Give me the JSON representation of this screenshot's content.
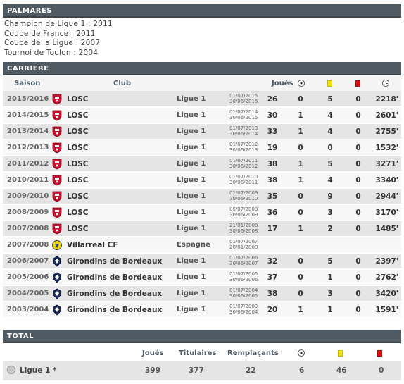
{
  "palmares": {
    "title": "PALMARES",
    "items": [
      "Champion de Ligue 1 : 2011",
      "Coupe de France : 2011",
      "Coupe de la Ligue : 2007",
      "Tournoi de Toulon : 2004"
    ]
  },
  "carriere": {
    "title": "CARRIERE",
    "headers": {
      "season": "Saison",
      "club": "Club",
      "played": "Joués"
    },
    "icons": {
      "goals": "ball-icon",
      "yellow": "yellow-card-icon",
      "red": "red-card-icon",
      "time": "clock-icon"
    },
    "rows": [
      {
        "season": "2015/2016",
        "club": "LOSC",
        "crest": "losc",
        "league": "Ligue 1",
        "from": "01/07/2015",
        "to": "30/06/2016",
        "played": "26",
        "goals": "0",
        "yellow": "5",
        "red": "0",
        "time": "2218'"
      },
      {
        "season": "2014/2015",
        "club": "LOSC",
        "crest": "losc",
        "league": "Ligue 1",
        "from": "01/07/2014",
        "to": "30/06/2015",
        "played": "30",
        "goals": "1",
        "yellow": "4",
        "red": "0",
        "time": "2601'"
      },
      {
        "season": "2013/2014",
        "club": "LOSC",
        "crest": "losc",
        "league": "Ligue 1",
        "from": "01/07/2013",
        "to": "30/06/2014",
        "played": "33",
        "goals": "1",
        "yellow": "4",
        "red": "0",
        "time": "2755'"
      },
      {
        "season": "2012/2013",
        "club": "LOSC",
        "crest": "losc",
        "league": "Ligue 1",
        "from": "01/07/2012",
        "to": "30/06/2013",
        "played": "19",
        "goals": "0",
        "yellow": "0",
        "red": "0",
        "time": "1532'"
      },
      {
        "season": "2011/2012",
        "club": "LOSC",
        "crest": "losc",
        "league": "Ligue 1",
        "from": "01/07/2011",
        "to": "30/06/2012",
        "played": "38",
        "goals": "1",
        "yellow": "5",
        "red": "0",
        "time": "3271'"
      },
      {
        "season": "2010/2011",
        "club": "LOSC",
        "crest": "losc",
        "league": "Ligue 1",
        "from": "01/07/2010",
        "to": "30/06/2011",
        "played": "38",
        "goals": "1",
        "yellow": "4",
        "red": "0",
        "time": "3340'"
      },
      {
        "season": "2009/2010",
        "club": "LOSC",
        "crest": "losc",
        "league": "Ligue 1",
        "from": "01/07/2009",
        "to": "30/06/2010",
        "played": "35",
        "goals": "0",
        "yellow": "9",
        "red": "0",
        "time": "2944'"
      },
      {
        "season": "2008/2009",
        "club": "LOSC",
        "crest": "losc",
        "league": "Ligue 1",
        "from": "05/07/2008",
        "to": "30/06/2009",
        "played": "36",
        "goals": "0",
        "yellow": "3",
        "red": "0",
        "time": "3170'"
      },
      {
        "season": "2007/2008",
        "club": "LOSC",
        "crest": "losc",
        "league": "Ligue 1",
        "from": "21/01/2008",
        "to": "30/06/2008",
        "played": "17",
        "goals": "1",
        "yellow": "2",
        "red": "0",
        "time": "1485'"
      },
      {
        "season": "2007/2008",
        "club": "Villarreal CF",
        "crest": "villarreal",
        "league": "Espagne",
        "from": "01/07/2007",
        "to": "20/01/2008",
        "played": "",
        "goals": "",
        "yellow": "",
        "red": "",
        "time": ""
      },
      {
        "season": "2006/2007",
        "club": "Girondins de Bordeaux",
        "crest": "bordeaux",
        "league": "Ligue 1",
        "from": "01/07/2006",
        "to": "30/06/2007",
        "played": "32",
        "goals": "0",
        "yellow": "5",
        "red": "0",
        "time": "2397'"
      },
      {
        "season": "2005/2006",
        "club": "Girondins de Bordeaux",
        "crest": "bordeaux",
        "league": "Ligue 1",
        "from": "01/07/2005",
        "to": "30/06/2006",
        "played": "37",
        "goals": "0",
        "yellow": "1",
        "red": "0",
        "time": "2762'"
      },
      {
        "season": "2004/2005",
        "club": "Girondins de Bordeaux",
        "crest": "bordeaux",
        "league": "Ligue 1",
        "from": "01/07/2004",
        "to": "30/06/2005",
        "played": "38",
        "goals": "0",
        "yellow": "3",
        "red": "0",
        "time": "3420'"
      },
      {
        "season": "2003/2004",
        "club": "Girondins de Bordeaux",
        "crest": "bordeaux",
        "league": "Ligue 1",
        "from": "01/07/2003",
        "to": "30/06/2004",
        "played": "20",
        "goals": "1",
        "yellow": "1",
        "red": "0",
        "time": "1591'"
      }
    ]
  },
  "total": {
    "title": "TOTAL",
    "headers": {
      "played": "Joués",
      "starter": "Titulaires",
      "sub": "Remplaçants"
    },
    "row": {
      "league": "Ligue 1 *",
      "played": "399",
      "starter": "377",
      "sub": "22",
      "goals": "6",
      "yellow": "46",
      "red": "0"
    }
  },
  "colors": {
    "header_bg": "#4f5a63",
    "row_odd": "#e5e5e5",
    "row_even": "#f7f7f7",
    "yellow_card": "#f6e500",
    "red_card": "#e3100f",
    "losc_red": "#c8102e",
    "bordeaux_navy": "#1b2a5c",
    "villarreal_yellow": "#f5d000"
  }
}
